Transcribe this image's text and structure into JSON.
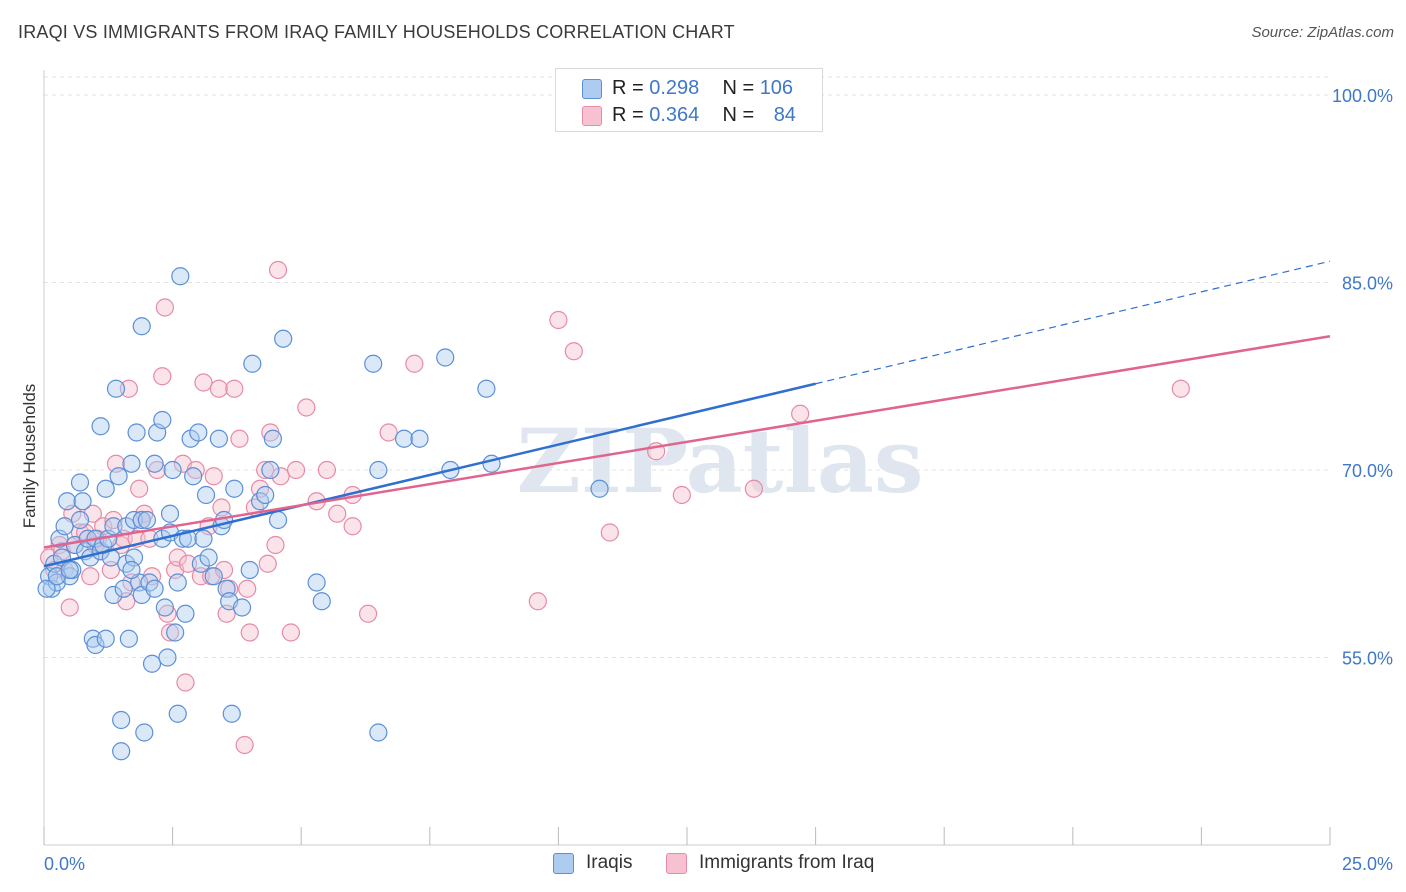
{
  "header": {
    "title": "IRAQI VS IMMIGRANTS FROM IRAQ FAMILY HOUSEHOLDS CORRELATION CHART",
    "source": "Source: ZipAtlas.com"
  },
  "watermark": "ZIPatlas",
  "legend_top": {
    "rows": [
      {
        "r_label": "R = ",
        "r_value": "0.298",
        "n_label": "N = ",
        "n_value": "106"
      },
      {
        "r_label": "R = ",
        "r_value": "0.364",
        "n_label": "N = ",
        "n_value": "84"
      }
    ]
  },
  "legend_bottom": {
    "items": [
      "Iraqis",
      "Immigrants from Iraq"
    ]
  },
  "colors": {
    "iraqis_fill": "#aecbf0",
    "iraqis_stroke": "#5b8fd6",
    "iraqis_line": "#2e6fcf",
    "immigrants_fill": "#f7c1d1",
    "immigrants_stroke": "#e68aa7",
    "immigrants_line": "#e0648e",
    "tick_label": "#3f78c7",
    "grid": "#e3e3e3"
  },
  "chart_data": {
    "type": "scatter",
    "title": "IRAQI VS IMMIGRANTS FROM IRAQ FAMILY HOUSEHOLDS CORRELATION CHART",
    "xlabel": "",
    "ylabel": "Family Households",
    "xlim": [
      0,
      25
    ],
    "ylim": [
      40,
      102
    ],
    "x_tick_labels": [
      "0.0%",
      "25.0%"
    ],
    "y_ticks": [
      55,
      70,
      85,
      100
    ],
    "y_tick_labels": [
      "55.0%",
      "70.0%",
      "85.0%",
      "100.0%"
    ],
    "grid": true,
    "legend_position": "top-center",
    "series": [
      {
        "name": "Iraqis",
        "R": 0.298,
        "N": 106,
        "trend": {
          "x0": 0.0,
          "y0": 62.3,
          "x1": 15.0,
          "y1": 76.9,
          "dashed_to_x": 25.0,
          "dashed_to_y": 86.7
        },
        "points": [
          [
            0.1,
            61.5
          ],
          [
            0.15,
            60.5
          ],
          [
            0.2,
            62.5
          ],
          [
            0.25,
            61.0
          ],
          [
            0.3,
            64.5
          ],
          [
            0.35,
            63.0
          ],
          [
            0.4,
            65.5
          ],
          [
            0.45,
            67.5
          ],
          [
            0.5,
            61.5
          ],
          [
            0.55,
            62.0
          ],
          [
            0.6,
            64.0
          ],
          [
            0.7,
            66.0
          ],
          [
            0.7,
            69.0
          ],
          [
            0.75,
            67.5
          ],
          [
            0.8,
            63.5
          ],
          [
            0.85,
            64.5
          ],
          [
            0.9,
            63.0
          ],
          [
            0.95,
            56.5
          ],
          [
            1.0,
            56.0
          ],
          [
            1.0,
            64.5
          ],
          [
            1.1,
            63.5
          ],
          [
            1.1,
            73.5
          ],
          [
            1.15,
            64.0
          ],
          [
            1.2,
            56.5
          ],
          [
            1.2,
            68.5
          ],
          [
            1.25,
            64.5
          ],
          [
            1.3,
            63.0
          ],
          [
            1.35,
            65.5
          ],
          [
            1.35,
            60.0
          ],
          [
            1.4,
            76.5
          ],
          [
            1.45,
            69.5
          ],
          [
            1.5,
            50.0
          ],
          [
            1.5,
            47.5
          ],
          [
            1.55,
            60.5
          ],
          [
            1.6,
            62.5
          ],
          [
            1.6,
            65.5
          ],
          [
            1.65,
            56.5
          ],
          [
            1.7,
            70.5
          ],
          [
            1.75,
            66.0
          ],
          [
            1.75,
            63.0
          ],
          [
            1.8,
            73.0
          ],
          [
            1.85,
            61.0
          ],
          [
            1.9,
            66.0
          ],
          [
            1.9,
            60.0
          ],
          [
            1.9,
            81.5
          ],
          [
            1.95,
            49.0
          ],
          [
            2.0,
            66.0
          ],
          [
            2.05,
            61.0
          ],
          [
            2.1,
            54.5
          ],
          [
            2.15,
            70.5
          ],
          [
            2.15,
            60.5
          ],
          [
            2.2,
            73.0
          ],
          [
            2.3,
            74.0
          ],
          [
            2.3,
            64.5
          ],
          [
            2.35,
            59.0
          ],
          [
            2.4,
            55.0
          ],
          [
            2.45,
            65.0
          ],
          [
            2.45,
            66.5
          ],
          [
            2.5,
            70.0
          ],
          [
            2.55,
            57.0
          ],
          [
            2.6,
            50.5
          ],
          [
            2.6,
            61.0
          ],
          [
            2.65,
            85.5
          ],
          [
            2.7,
            64.5
          ],
          [
            2.75,
            58.5
          ],
          [
            2.8,
            64.5
          ],
          [
            2.85,
            72.5
          ],
          [
            2.9,
            69.5
          ],
          [
            3.0,
            73.0
          ],
          [
            3.05,
            62.5
          ],
          [
            3.1,
            64.5
          ],
          [
            3.15,
            68.0
          ],
          [
            3.2,
            63.0
          ],
          [
            3.3,
            61.5
          ],
          [
            3.4,
            72.5
          ],
          [
            3.45,
            65.5
          ],
          [
            3.5,
            66.0
          ],
          [
            3.55,
            60.5
          ],
          [
            3.6,
            59.5
          ],
          [
            3.65,
            50.5
          ],
          [
            3.7,
            68.5
          ],
          [
            3.85,
            59.0
          ],
          [
            4.0,
            62.0
          ],
          [
            4.05,
            78.5
          ],
          [
            4.2,
            67.5
          ],
          [
            4.3,
            68.0
          ],
          [
            4.4,
            70.0
          ],
          [
            4.45,
            72.5
          ],
          [
            4.55,
            66.0
          ],
          [
            4.65,
            80.5
          ],
          [
            5.3,
            61.0
          ],
          [
            5.4,
            59.5
          ],
          [
            6.4,
            78.5
          ],
          [
            6.5,
            70.0
          ],
          [
            6.5,
            49.0
          ],
          [
            7.0,
            72.5
          ],
          [
            7.3,
            72.5
          ],
          [
            7.8,
            79.0
          ],
          [
            7.9,
            70.0
          ],
          [
            8.6,
            76.5
          ],
          [
            8.7,
            70.5
          ],
          [
            10.8,
            68.5
          ],
          [
            0.05,
            60.5
          ],
          [
            0.25,
            61.5
          ],
          [
            0.5,
            62.0
          ],
          [
            1.7,
            62.0
          ]
        ]
      },
      {
        "name": "Immigrants from Iraq",
        "R": 0.364,
        "N": 84,
        "trend": {
          "x0": 0.0,
          "y0": 63.8,
          "x1": 25.0,
          "y1": 80.7
        },
        "points": [
          [
            0.1,
            63.0
          ],
          [
            0.2,
            62.0
          ],
          [
            0.3,
            64.0
          ],
          [
            0.35,
            63.5
          ],
          [
            0.4,
            62.0
          ],
          [
            0.5,
            59.0
          ],
          [
            0.55,
            66.5
          ],
          [
            0.6,
            64.0
          ],
          [
            0.7,
            65.0
          ],
          [
            0.8,
            65.0
          ],
          [
            0.9,
            61.5
          ],
          [
            0.95,
            66.5
          ],
          [
            1.0,
            64.0
          ],
          [
            1.05,
            64.5
          ],
          [
            1.1,
            63.5
          ],
          [
            1.15,
            65.5
          ],
          [
            1.3,
            62.0
          ],
          [
            1.35,
            66.0
          ],
          [
            1.4,
            70.5
          ],
          [
            1.5,
            64.0
          ],
          [
            1.55,
            64.5
          ],
          [
            1.6,
            59.5
          ],
          [
            1.65,
            76.5
          ],
          [
            1.7,
            61.0
          ],
          [
            1.8,
            64.5
          ],
          [
            1.85,
            68.5
          ],
          [
            1.9,
            66.0
          ],
          [
            1.95,
            66.5
          ],
          [
            2.05,
            64.5
          ],
          [
            2.1,
            61.5
          ],
          [
            2.2,
            70.0
          ],
          [
            2.3,
            77.5
          ],
          [
            2.35,
            83.0
          ],
          [
            2.4,
            58.5
          ],
          [
            2.45,
            57.0
          ],
          [
            2.55,
            62.0
          ],
          [
            2.6,
            63.0
          ],
          [
            2.7,
            70.5
          ],
          [
            2.75,
            53.0
          ],
          [
            2.8,
            62.5
          ],
          [
            2.95,
            70.0
          ],
          [
            3.05,
            61.5
          ],
          [
            3.1,
            77.0
          ],
          [
            3.2,
            65.5
          ],
          [
            3.25,
            61.5
          ],
          [
            3.3,
            69.5
          ],
          [
            3.4,
            76.5
          ],
          [
            3.45,
            67.0
          ],
          [
            3.5,
            62.0
          ],
          [
            3.55,
            58.5
          ],
          [
            3.6,
            60.5
          ],
          [
            3.7,
            76.5
          ],
          [
            3.8,
            72.5
          ],
          [
            3.9,
            48.0
          ],
          [
            3.95,
            60.5
          ],
          [
            4.0,
            57.0
          ],
          [
            4.1,
            67.0
          ],
          [
            4.2,
            68.5
          ],
          [
            4.3,
            70.0
          ],
          [
            4.35,
            62.5
          ],
          [
            4.4,
            73.0
          ],
          [
            4.5,
            64.0
          ],
          [
            4.55,
            86.0
          ],
          [
            4.6,
            69.5
          ],
          [
            4.8,
            57.0
          ],
          [
            4.9,
            70.0
          ],
          [
            5.1,
            75.0
          ],
          [
            5.3,
            67.5
          ],
          [
            5.5,
            70.0
          ],
          [
            5.7,
            66.5
          ],
          [
            6.0,
            65.5
          ],
          [
            6.0,
            68.0
          ],
          [
            6.3,
            58.5
          ],
          [
            6.7,
            73.0
          ],
          [
            7.2,
            78.5
          ],
          [
            9.6,
            59.5
          ],
          [
            10.0,
            82.0
          ],
          [
            10.3,
            79.5
          ],
          [
            11.0,
            65.0
          ],
          [
            11.9,
            71.5
          ],
          [
            12.4,
            68.0
          ],
          [
            13.8,
            68.5
          ],
          [
            14.7,
            74.5
          ],
          [
            22.1,
            76.5
          ]
        ]
      }
    ]
  }
}
